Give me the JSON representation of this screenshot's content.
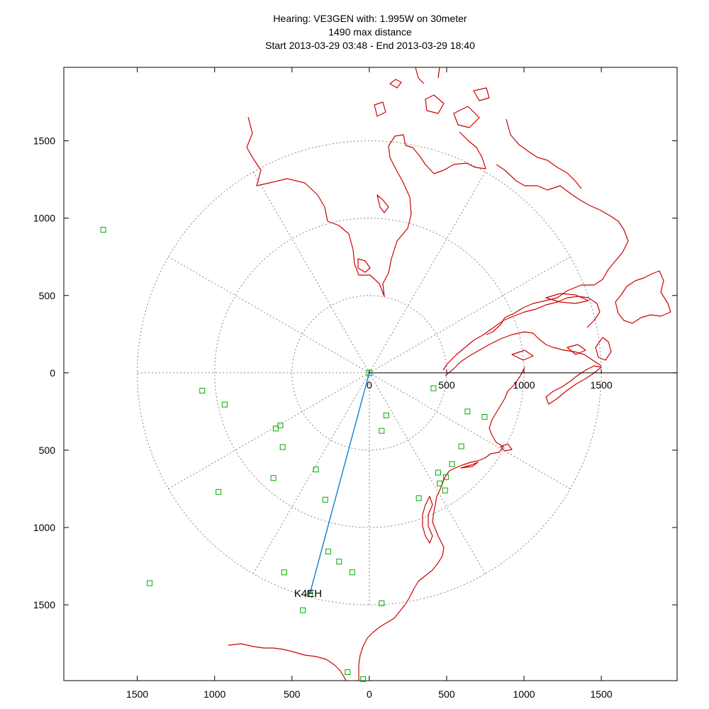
{
  "chart_data": {
    "type": "scatter",
    "title": "Hearing: VE3GEN with: 1.995W on 30meter",
    "subtitle": "1490 max distance",
    "time_range": "Start 2013-03-29 03:48 - End 2013-03-29 18:40",
    "xlim": [
      -1975,
      1990
    ],
    "ylim": [
      -1990,
      1975
    ],
    "x_ticks": [
      -1500,
      -1000,
      -500,
      0,
      500,
      1000,
      1500
    ],
    "x_tick_labels": [
      "1500",
      "1000",
      "500",
      "0",
      "500",
      "1000",
      "1500"
    ],
    "y_ticks": [
      1500,
      1000,
      500,
      0,
      -500,
      -1000,
      -1500
    ],
    "y_tick_labels": [
      "1500",
      "1000",
      "500",
      "0",
      "500",
      "1000",
      "1500"
    ],
    "inner_x_tick_labels": [
      "0",
      "500",
      "1000",
      "1500"
    ],
    "range_rings": [
      500,
      1000,
      1500
    ],
    "radial_spoke_angles_deg": [
      0,
      30,
      60,
      90,
      120,
      150,
      180,
      210,
      240,
      270,
      300,
      330
    ],
    "grid": true,
    "colors": {
      "coastline": "#cc0000",
      "station": "#00aa00",
      "path": "#0077cc",
      "axis": "#000000",
      "grid": "#888888"
    },
    "highlight": {
      "label": "K4EH",
      "x": -385,
      "y": -1430
    },
    "points": [
      {
        "x": -1720,
        "y": 925
      },
      {
        "x": -1080,
        "y": -115
      },
      {
        "x": -935,
        "y": -205
      },
      {
        "x": -605,
        "y": -360
      },
      {
        "x": -575,
        "y": -340
      },
      {
        "x": -560,
        "y": -480
      },
      {
        "x": -620,
        "y": -680
      },
      {
        "x": -975,
        "y": -770
      },
      {
        "x": -345,
        "y": -625
      },
      {
        "x": -285,
        "y": -820
      },
      {
        "x": -1420,
        "y": -1360
      },
      {
        "x": -550,
        "y": -1290
      },
      {
        "x": -265,
        "y": -1155
      },
      {
        "x": -195,
        "y": -1220
      },
      {
        "x": -110,
        "y": -1290
      },
      {
        "x": -430,
        "y": -1535
      },
      {
        "x": -140,
        "y": -1935
      },
      {
        "x": -40,
        "y": -1980
      },
      {
        "x": 0,
        "y": 0
      },
      {
        "x": 415,
        "y": -100
      },
      {
        "x": 110,
        "y": -275
      },
      {
        "x": 80,
        "y": -375
      },
      {
        "x": 635,
        "y": -250
      },
      {
        "x": 745,
        "y": -285
      },
      {
        "x": 595,
        "y": -475
      },
      {
        "x": 535,
        "y": -590
      },
      {
        "x": 445,
        "y": -645
      },
      {
        "x": 495,
        "y": -675
      },
      {
        "x": 455,
        "y": -715
      },
      {
        "x": 490,
        "y": -760
      },
      {
        "x": 320,
        "y": -810
      },
      {
        "x": 80,
        "y": -1490
      }
    ]
  }
}
